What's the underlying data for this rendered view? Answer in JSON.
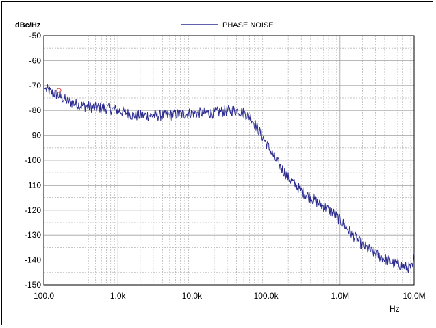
{
  "chart_data": {
    "type": "line",
    "ylabel": "dBc/Hz",
    "xlabel": "Hz",
    "x_scale": "log",
    "xlim": [
      100,
      10000000
    ],
    "ylim": [
      -150,
      -50
    ],
    "x_tick_labels": [
      "100.0",
      "1.0k",
      "10.0k",
      "100.0k",
      "1.0M",
      "10.0M"
    ],
    "y_ticks": [
      -50,
      -60,
      -70,
      -80,
      -90,
      -100,
      -110,
      -120,
      -130,
      -140,
      -150
    ],
    "grid": true,
    "legend_position": "top-center",
    "marker": {
      "x": 160,
      "y": -72
    },
    "series": [
      {
        "name": "PHASE NOISE",
        "color": "#2b2b90",
        "points": [
          [
            100,
            -71
          ],
          [
            130,
            -73
          ],
          [
            160,
            -74
          ],
          [
            200,
            -76
          ],
          [
            250,
            -77
          ],
          [
            320,
            -78
          ],
          [
            400,
            -78.5
          ],
          [
            500,
            -79
          ],
          [
            630,
            -79
          ],
          [
            800,
            -79.5
          ],
          [
            1000,
            -80
          ],
          [
            1300,
            -81
          ],
          [
            1600,
            -82
          ],
          [
            2000,
            -82
          ],
          [
            2500,
            -82
          ],
          [
            3200,
            -82
          ],
          [
            4000,
            -82
          ],
          [
            5000,
            -82
          ],
          [
            6300,
            -81.5
          ],
          [
            8000,
            -81.5
          ],
          [
            10000,
            -81
          ],
          [
            13000,
            -81
          ],
          [
            16000,
            -81
          ],
          [
            20000,
            -81
          ],
          [
            25000,
            -80.5
          ],
          [
            32000,
            -80
          ],
          [
            40000,
            -80
          ],
          [
            50000,
            -81
          ],
          [
            63000,
            -83
          ],
          [
            80000,
            -88
          ],
          [
            100000,
            -93
          ],
          [
            130000,
            -99
          ],
          [
            160000,
            -103
          ],
          [
            200000,
            -107
          ],
          [
            250000,
            -110
          ],
          [
            320000,
            -113
          ],
          [
            400000,
            -115
          ],
          [
            500000,
            -117
          ],
          [
            630000,
            -119
          ],
          [
            800000,
            -121
          ],
          [
            1000000,
            -124
          ],
          [
            1300000,
            -128
          ],
          [
            1600000,
            -131
          ],
          [
            2000000,
            -134
          ],
          [
            2500000,
            -136
          ],
          [
            3200000,
            -138
          ],
          [
            4000000,
            -139.5
          ],
          [
            5000000,
            -141
          ],
          [
            6300000,
            -142
          ],
          [
            8000000,
            -143
          ],
          [
            9500000,
            -143
          ],
          [
            10000000,
            -137
          ]
        ]
      }
    ]
  }
}
